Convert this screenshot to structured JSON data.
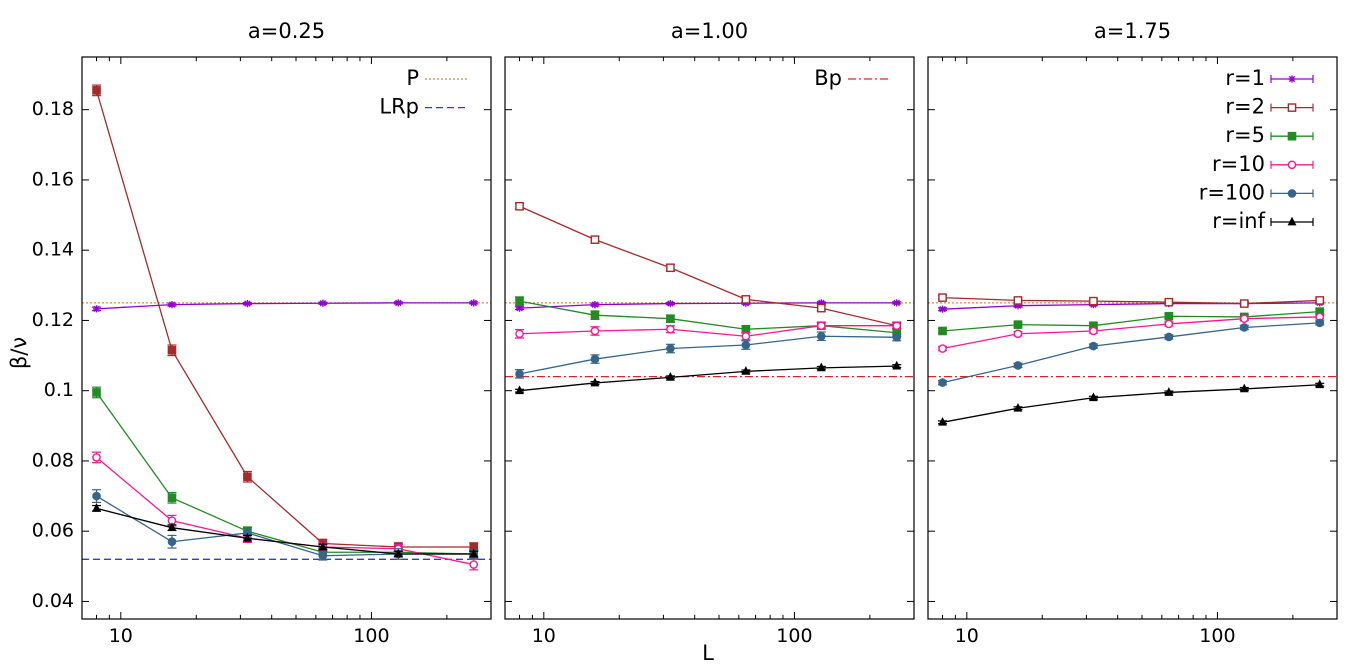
{
  "chart_data": {
    "type": "line",
    "xlabel": "L",
    "ylabel": "β/ν",
    "xscale": "log",
    "xlim": [
      7,
      300
    ],
    "ylim": [
      0.035,
      0.195
    ],
    "x": [
      8,
      16,
      32,
      64,
      128,
      256
    ],
    "xticks": [
      10,
      100
    ],
    "xtick_labels": [
      "10",
      "100"
    ],
    "yticks": [
      0.04,
      0.06,
      0.08,
      0.1,
      0.12,
      0.14,
      0.16,
      0.18
    ],
    "ytick_labels": [
      "0.04",
      "0.06",
      "0.08",
      "0.1",
      "0.12",
      "0.14",
      "0.16",
      "0.18"
    ],
    "reference_lines": [
      {
        "name": "P",
        "value": 0.125,
        "color": "#e8853a",
        "style": "dotted"
      },
      {
        "name": "LRp",
        "value": 0.052,
        "color": "#2b3fd6",
        "style": "dashed"
      },
      {
        "name": "Bp",
        "value": 0.104,
        "color": "#e02424",
        "style": "dashdot"
      }
    ],
    "series_styles": [
      {
        "name": "r=1",
        "color": "#9400d3",
        "marker": "star"
      },
      {
        "name": "r=2",
        "color": "#a52a2a",
        "marker": "square-open"
      },
      {
        "name": "r=5",
        "color": "#228b22",
        "marker": "square-filled"
      },
      {
        "name": "r=10",
        "color": "#ff1493",
        "marker": "circle-open"
      },
      {
        "name": "r=100",
        "color": "#36648b",
        "marker": "circle-filled"
      },
      {
        "name": "r=inf",
        "color": "#000000",
        "marker": "triangle"
      }
    ],
    "panels": [
      {
        "title": "a=0.25",
        "ref_lines": [
          "P",
          "LRp"
        ],
        "legend": [
          "P",
          "LRp"
        ],
        "series": [
          {
            "name": "r=1",
            "values": [
              0.1233,
              0.1245,
              0.1248,
              0.1249,
              0.125,
              0.125
            ],
            "errors": [
              0.0005,
              0.0004,
              0.0003,
              0.0003,
              0.0003,
              0.0003
            ],
            "filled": false
          },
          {
            "name": "r=2",
            "values": [
              0.1855,
              0.1115,
              0.0755,
              0.0565,
              0.0555,
              0.0555
            ],
            "errors": [
              0.0015,
              0.0015,
              0.0015,
              0.0012,
              0.0012,
              0.0012
            ],
            "filled": true
          },
          {
            "name": "r=5",
            "values": [
              0.0995,
              0.0695,
              0.06,
              0.054,
              0.054,
              0.0535
            ],
            "errors": [
              0.0015,
              0.0015,
              0.0012,
              0.001,
              0.001,
              0.001
            ],
            "filled": false
          },
          {
            "name": "r=10",
            "values": [
              0.081,
              0.063,
              0.058,
              0.0555,
              0.055,
              0.0505
            ],
            "errors": [
              0.0015,
              0.0015,
              0.0012,
              0.0012,
              0.0012,
              0.0015
            ],
            "filled": false
          },
          {
            "name": "r=100",
            "values": [
              0.07,
              0.057,
              0.0595,
              0.053,
              0.0535,
              0.0535
            ],
            "errors": [
              0.0018,
              0.0018,
              0.0015,
              0.0012,
              0.0015,
              0.0012
            ],
            "filled": false
          },
          {
            "name": "r=inf",
            "values": [
              0.0665,
              0.061,
              0.058,
              0.0555,
              0.0535,
              0.0535
            ],
            "errors": [
              0.0008,
              0.0008,
              0.0008,
              0.0008,
              0.0008,
              0.0008
            ],
            "filled": true
          }
        ]
      },
      {
        "title": "a=1.00",
        "ref_lines": [
          "P",
          "Bp"
        ],
        "legend": [
          "Bp"
        ],
        "series": [
          {
            "name": "r=1",
            "values": [
              0.1235,
              0.1245,
              0.1248,
              0.1249,
              0.125,
              0.125
            ],
            "errors": [
              0.0004,
              0.0004,
              0.0003,
              0.0003,
              0.0003,
              0.0003
            ],
            "filled": false
          },
          {
            "name": "r=2",
            "values": [
              0.1525,
              0.143,
              0.135,
              0.126,
              0.1235,
              0.1185
            ],
            "errors": [
              0.0008,
              0.001,
              0.001,
              0.0008,
              0.0008,
              0.0008
            ],
            "filled": false
          },
          {
            "name": "r=5",
            "values": [
              0.1255,
              0.1215,
              0.1205,
              0.1175,
              0.1185,
              0.1165
            ],
            "errors": [
              0.0012,
              0.0012,
              0.001,
              0.001,
              0.001,
              0.001
            ],
            "filled": true
          },
          {
            "name": "r=10",
            "values": [
              0.1162,
              0.117,
              0.1175,
              0.1155,
              0.1185,
              0.1185
            ],
            "errors": [
              0.0012,
              0.0012,
              0.001,
              0.001,
              0.001,
              0.001
            ],
            "filled": false
          },
          {
            "name": "r=100",
            "values": [
              0.1048,
              0.109,
              0.112,
              0.113,
              0.1155,
              0.1152
            ],
            "errors": [
              0.0012,
              0.0012,
              0.0012,
              0.0012,
              0.0012,
              0.001
            ],
            "filled": true
          },
          {
            "name": "r=inf",
            "values": [
              0.1,
              0.1022,
              0.1038,
              0.1055,
              0.1065,
              0.107
            ],
            "errors": [
              0.0004,
              0.0004,
              0.0004,
              0.0004,
              0.0004,
              0.0004
            ],
            "filled": true
          }
        ]
      },
      {
        "title": "a=1.75",
        "ref_lines": [
          "P",
          "Bp"
        ],
        "legend": [
          "r=1",
          "r=2",
          "r=5",
          "r=10",
          "r=100",
          "r=inf"
        ],
        "series": [
          {
            "name": "r=1",
            "values": [
              0.1232,
              0.1242,
              0.1245,
              0.1248,
              0.1248,
              0.125
            ],
            "errors": [
              0.0004,
              0.0004,
              0.0003,
              0.0003,
              0.0003,
              0.0003
            ],
            "filled": false
          },
          {
            "name": "r=2",
            "values": [
              0.1265,
              0.1257,
              0.1255,
              0.1252,
              0.1248,
              0.1257
            ],
            "errors": [
              0.0006,
              0.0006,
              0.0006,
              0.0006,
              0.0006,
              0.0006
            ],
            "filled": false
          },
          {
            "name": "r=5",
            "values": [
              0.117,
              0.1188,
              0.1185,
              0.1212,
              0.121,
              0.1225
            ],
            "errors": [
              0.0006,
              0.0006,
              0.0006,
              0.0006,
              0.0006,
              0.0006
            ],
            "filled": true
          },
          {
            "name": "r=10",
            "values": [
              0.112,
              0.1162,
              0.117,
              0.119,
              0.1205,
              0.121
            ],
            "errors": [
              0.0006,
              0.0006,
              0.0006,
              0.0006,
              0.0006,
              0.0006
            ],
            "filled": false
          },
          {
            "name": "r=100",
            "values": [
              0.1023,
              0.1072,
              0.1127,
              0.1153,
              0.118,
              0.1193
            ],
            "errors": [
              0.0006,
              0.0006,
              0.0006,
              0.0006,
              0.0006,
              0.0006
            ],
            "filled": true
          },
          {
            "name": "r=inf",
            "values": [
              0.091,
              0.095,
              0.098,
              0.0995,
              0.1005,
              0.1017
            ],
            "errors": [
              0.0004,
              0.0004,
              0.0004,
              0.0004,
              0.0004,
              0.0004
            ],
            "filled": true
          }
        ]
      }
    ]
  }
}
